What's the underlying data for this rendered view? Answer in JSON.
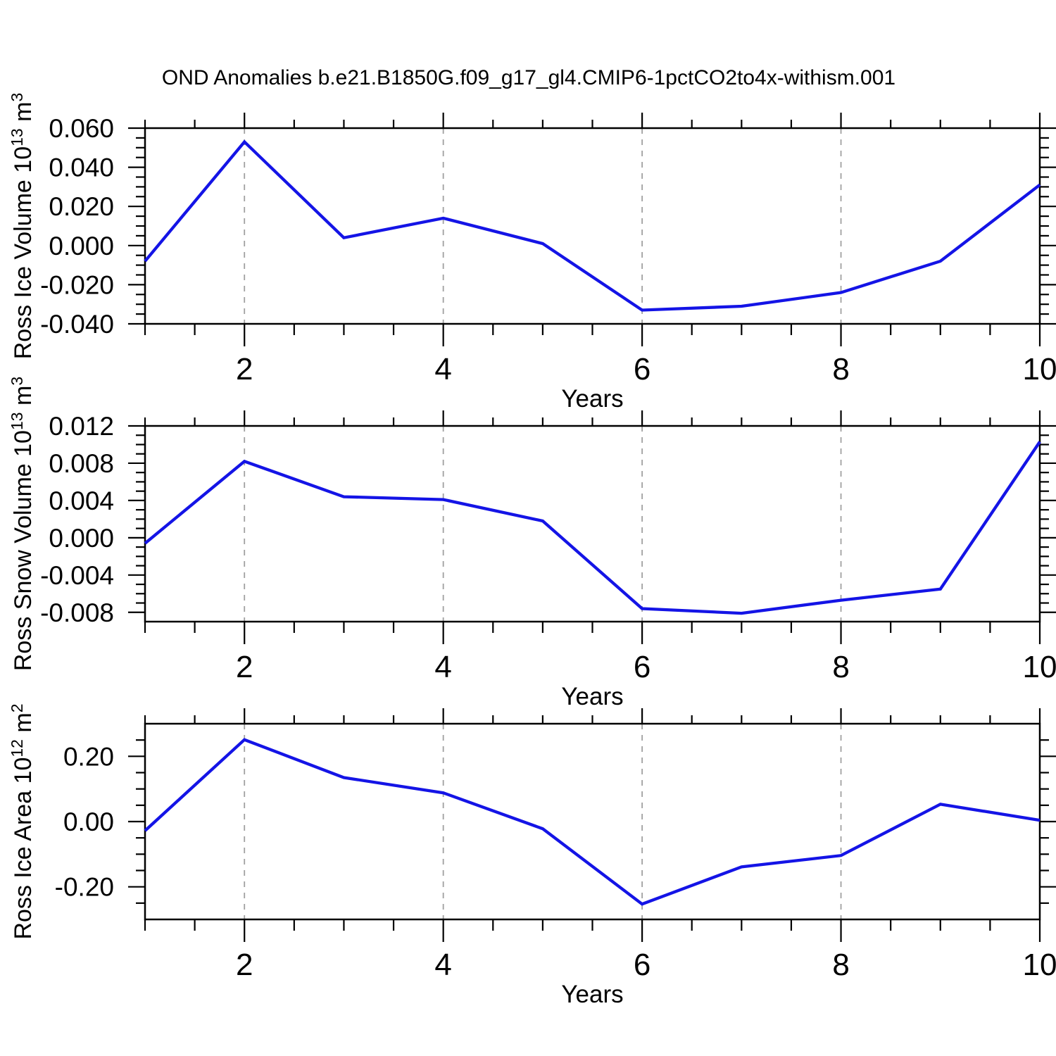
{
  "title": "OND Anomalies b.e21.B1850G.f09_g17_gl4.CMIP6-1pctCO2to4x-withism.001",
  "colors": {
    "line": "#1414e6",
    "grid": "#a0a0a0",
    "axis": "#000000",
    "text": "#000000",
    "background": "#ffffff"
  },
  "x_axis": {
    "label": "Years",
    "range": [
      1,
      10
    ],
    "major_ticks": [
      2,
      4,
      6,
      8,
      10
    ],
    "major_tick_labels": [
      "2",
      "4",
      "6",
      "8",
      "10"
    ],
    "minor_step": 0.5,
    "gridlines": [
      2,
      4,
      6,
      8
    ]
  },
  "chart_data": [
    {
      "type": "line",
      "name": "ross-ice-volume",
      "ylabel": "Ross Ice Volume 10^13 m^3",
      "ylabel_parts": [
        {
          "t": "Ross Ice Volume 10"
        },
        {
          "t": "13",
          "sup": true
        },
        {
          "t": " m"
        },
        {
          "t": "3",
          "sup": true
        }
      ],
      "xlabel": "Years",
      "x": [
        1,
        2,
        3,
        4,
        5,
        6,
        7,
        8,
        9,
        10
      ],
      "values": [
        -0.008,
        0.053,
        0.004,
        0.014,
        0.001,
        -0.033,
        -0.031,
        -0.024,
        -0.008,
        0.031
      ],
      "ylim": [
        -0.04,
        0.06
      ],
      "yticks": [
        {
          "v": 0.06,
          "label": "0.060"
        },
        {
          "v": 0.04,
          "label": "0.040"
        },
        {
          "v": 0.02,
          "label": "0.020"
        },
        {
          "v": 0.0,
          "label": "0.000"
        },
        {
          "v": -0.02,
          "label": "-0.020"
        },
        {
          "v": -0.04,
          "label": "-0.040"
        }
      ],
      "y_minor_step": 0.005
    },
    {
      "type": "line",
      "name": "ross-snow-volume",
      "ylabel": "Ross Snow Volume 10^13 m^3",
      "ylabel_parts": [
        {
          "t": "Ross Snow Volume 10"
        },
        {
          "t": "13",
          "sup": true
        },
        {
          "t": " m"
        },
        {
          "t": "3",
          "sup": true
        }
      ],
      "xlabel": "Years",
      "x": [
        1,
        2,
        3,
        4,
        5,
        6,
        7,
        8,
        9,
        10
      ],
      "values": [
        -0.0006,
        0.0082,
        0.0044,
        0.0041,
        0.0018,
        -0.0076,
        -0.0081,
        -0.0067,
        -0.0055,
        0.0103
      ],
      "ylim": [
        -0.009,
        0.012
      ],
      "yticks": [
        {
          "v": 0.012,
          "label": "0.012"
        },
        {
          "v": 0.008,
          "label": "0.008"
        },
        {
          "v": 0.004,
          "label": "0.004"
        },
        {
          "v": 0.0,
          "label": "0.000"
        },
        {
          "v": -0.004,
          "label": "-0.004"
        },
        {
          "v": -0.008,
          "label": "-0.008"
        }
      ],
      "y_minor_step": 0.001
    },
    {
      "type": "line",
      "name": "ross-ice-area",
      "ylabel": "Ross Ice Area 10^12 m^2",
      "ylabel_parts": [
        {
          "t": "Ross Ice Area 10"
        },
        {
          "t": "12",
          "sup": true
        },
        {
          "t": " m"
        },
        {
          "t": "2",
          "sup": true
        }
      ],
      "xlabel": "Years",
      "x": [
        1,
        2,
        3,
        4,
        5,
        6,
        7,
        8,
        9,
        10
      ],
      "values": [
        -0.028,
        0.251,
        0.135,
        0.088,
        -0.022,
        -0.253,
        -0.139,
        -0.104,
        0.053,
        0.004
      ],
      "ylim": [
        -0.3,
        0.3
      ],
      "yticks": [
        {
          "v": 0.2,
          "label": "0.20"
        },
        {
          "v": 0.0,
          "label": "0.00"
        },
        {
          "v": -0.2,
          "label": "-0.20"
        }
      ],
      "y_minor_step": 0.05
    }
  ]
}
